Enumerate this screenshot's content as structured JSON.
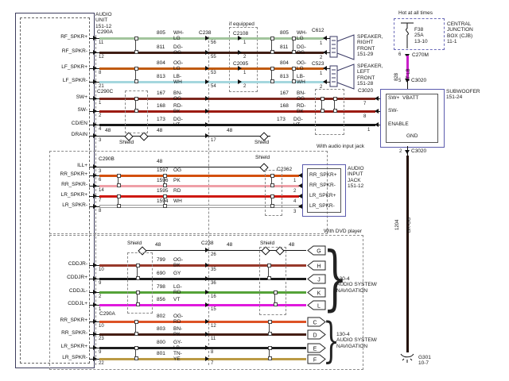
{
  "labels": {
    "audio_unit": "AUDIO\nUNIT\n151-12",
    "if_equipped": "if equipped",
    "hot": "Hot at all times",
    "cjb": "CENTRAL\nJUNCTION\nBOX (CJB)\n11-1",
    "fuse": "F38\n25A\n13-10",
    "speaker_rf": "SPEAKER,\nRIGHT\nFRONT\n151-29",
    "speaker_lf": "SPEAKER,\nLEFT\nFRONT\n151-28",
    "subwoofer": "SUBWOOFER\n151-24",
    "jack": "AUDIO\nINPUT\nJACK\n151-12",
    "with_jack": "With audio input jack",
    "with_dvd": "With DVD player",
    "nav": "130-4\nAUDIO SYSTEM/\nNAVIGATION",
    "ground": "G301\n10-7",
    "shield": "Shield",
    "brace": "}",
    "sub": {
      "swp": "SW+",
      "vbatt": "VBATT",
      "swm": "SW-",
      "enable": "ENABLE",
      "gnd": "GND"
    },
    "jack_pins": [
      "RR_SPKR+",
      "RR_SPKR-",
      "LR_SPKR+",
      "LR_SPKR-"
    ],
    "connectors": {
      "c290a": "C290A",
      "c290b": "C290B",
      "c290c": "C290C",
      "c290a2": "C290A",
      "c238": "C238",
      "c238b": "C238",
      "c2108": "C2108",
      "c2095": "C2095",
      "c612": "C612",
      "c523": "C523",
      "c2362": "C2362",
      "c3020_left": "C3020",
      "c3020_top": "C3020",
      "c3020_bot": "C3020",
      "c270m": "C270M"
    },
    "vpins": {
      "p6": "6",
      "p5": "5",
      "p2": "2"
    }
  },
  "vertical": [
    {
      "name": "vbatt-feed",
      "circuit": "828",
      "code": "VT-LB",
      "hex": "#ca1fca"
    },
    {
      "name": "sub-ground",
      "circuit": "1204",
      "code": "BK-OG",
      "hex": "#241208"
    }
  ],
  "rows": [
    {
      "name": "rf-spkr-plus",
      "label": "RF_SPKR+",
      "pin": "11",
      "circuit": "805",
      "code": "WH-LG",
      "hex": "#a2c59d",
      "cross_pins": [
        "56",
        "1"
      ],
      "end_pin": "1"
    },
    {
      "name": "rf-spkr-minus",
      "label": "RF_SPKR-",
      "pin": "12",
      "circuit": "811",
      "code": "DG-OG",
      "hex": "#3f1e15",
      "cross_pins": [
        "55",
        "2"
      ],
      "end_pin": "2"
    },
    {
      "name": "lf-spkr-plus",
      "label": "LF_SPKR+",
      "pin": "8",
      "circuit": "804",
      "code": "OG-LG",
      "hex": "#c05a10",
      "cross_pins": [
        "53",
        "1"
      ],
      "end_pin": "1"
    },
    {
      "name": "lf-spkr-minus",
      "label": "LF_SPKR-",
      "pin": "21",
      "circuit": "813",
      "code": "LB-WH",
      "hex": "#a5d7de",
      "cross_pins": [
        "54",
        "2"
      ],
      "end_pin": "2"
    },
    {
      "name": "sw-plus",
      "label": "SW+",
      "pin": "1",
      "circuit": "167",
      "code": "BN-OG",
      "hex": "#7c271d",
      "cross_pins": [
        ""
      ],
      "end_pin": "7"
    },
    {
      "name": "sw-minus",
      "label": "SW-",
      "pin": "2",
      "circuit": "168",
      "code": "RD-BK",
      "hex": "#9c1a10",
      "cross_pins": [
        ""
      ],
      "end_pin": "8"
    },
    {
      "name": "cd-en",
      "label": "CD/EN",
      "pin": "4",
      "circuit": "173",
      "code": "DG-VT",
      "hex": "#161616",
      "cross_pins": [
        ""
      ],
      "end_pin": "1"
    },
    {
      "name": "drain",
      "label": "DRAIN",
      "pin": "3",
      "circuit": "48",
      "code": null,
      "hex": "#111111",
      "cross_pins": [
        "17"
      ],
      "end_pin": null
    },
    {
      "name": "ill-plus",
      "label": "ILL+",
      "pin": "3",
      "circuit": "48",
      "code": null,
      "hex": "#111111",
      "cross_pins": [],
      "end_pin": null
    },
    {
      "name": "jack-rr-plus",
      "label": "RR_SPKR+",
      "pin": "6",
      "circuit": "1597",
      "code": "OG",
      "hex": "#d4500e",
      "cross_pins": [],
      "end_pin": "1"
    },
    {
      "name": "jack-rr-minus",
      "label": "RR_SPKR-",
      "pin": "14",
      "circuit": "1596",
      "code": "PK",
      "hex": "#efa0a8",
      "cross_pins": [],
      "end_pin": "2"
    },
    {
      "name": "jack-lr-plus",
      "label": "LR_SPKR+",
      "pin": "7",
      "circuit": "1595",
      "code": "RD",
      "hex": "#ce1810",
      "cross_pins": [],
      "end_pin": "4"
    },
    {
      "name": "jack-lr-minus",
      "label": "LR_SPKR-",
      "pin": "8",
      "circuit": "1594",
      "code": "WH",
      "hex": "#ffffff",
      "cross_pins": [],
      "end_pin": "3"
    },
    {
      "name": "dvd-shield",
      "label": null,
      "pin": null,
      "circuit": "48",
      "code": null,
      "hex": "#111111",
      "cross_pins": [
        "26"
      ],
      "terminal": "G"
    },
    {
      "name": "cddjr-minus",
      "label": "CDDJR-",
      "pin": "10",
      "circuit": "799",
      "code": "OG-BK",
      "hex": "#97382a",
      "cross_pins": [
        "35"
      ],
      "terminal": "H"
    },
    {
      "name": "cddjr-plus",
      "label": "CDDJR+",
      "pin": "9",
      "circuit": "690",
      "code": "GY",
      "hex": "#1b1b1b",
      "cross_pins": [
        "36"
      ],
      "terminal": "J"
    },
    {
      "name": "cddjl-minus",
      "label": "CDDJL-",
      "pin": "2",
      "circuit": "798",
      "code": "LG-RD",
      "hex": "#55a238",
      "cross_pins": [
        "16"
      ],
      "terminal": "K"
    },
    {
      "name": "cddjl-plus",
      "label": "CDDJL+",
      "pin": "1",
      "circuit": "856",
      "code": "VT",
      "hex": "#e019dd",
      "cross_pins": [
        "15"
      ],
      "terminal": "L"
    },
    {
      "name": "rr-spkr-plus-2",
      "label": "RR_SPKR+",
      "pin": "10",
      "circuit": "802",
      "code": "OG-RD",
      "hex": "#dd5226",
      "cross_pins": [
        "12"
      ],
      "terminal": "C"
    },
    {
      "name": "rr-spkr-minus-2",
      "label": "RR_SPKR-",
      "pin": "23",
      "circuit": "803",
      "code": "BN-PK",
      "hex": "#451e14",
      "cross_pins": [
        "11"
      ],
      "terminal": "D"
    },
    {
      "name": "lr-spkr-plus-2",
      "label": "LR_SPKR+",
      "pin": "9",
      "circuit": "800",
      "code": "GY-LB",
      "hex": "#1e1e1e",
      "cross_pins": [
        "8"
      ],
      "terminal": "E"
    },
    {
      "name": "lr-spkr-minus-2",
      "label": "LR_SPKR-",
      "pin": "22",
      "circuit": "801",
      "code": "TN-YE",
      "hex": "#bb9a44",
      "cross_pins": [
        "7"
      ],
      "terminal": "F"
    }
  ]
}
